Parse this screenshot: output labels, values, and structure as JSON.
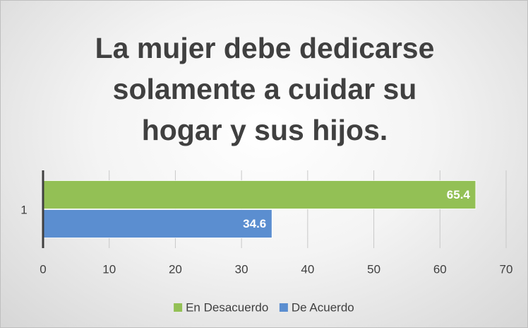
{
  "chart_data": {
    "type": "bar",
    "orientation": "horizontal",
    "title": "La mujer debe dedicarse solamente a cuidar su hogar y sus hijos.",
    "categories": [
      "1"
    ],
    "series": [
      {
        "name": "En Desacuerdo",
        "color": "#93c055",
        "values": [
          65.4
        ]
      },
      {
        "name": "De Acuerdo",
        "color": "#5b8ed0",
        "values": [
          34.6
        ]
      }
    ],
    "xlim": [
      0,
      70
    ],
    "xticks": [
      0,
      10,
      20,
      30,
      40,
      50,
      60,
      70
    ],
    "grid": true,
    "legend": "bottom"
  }
}
